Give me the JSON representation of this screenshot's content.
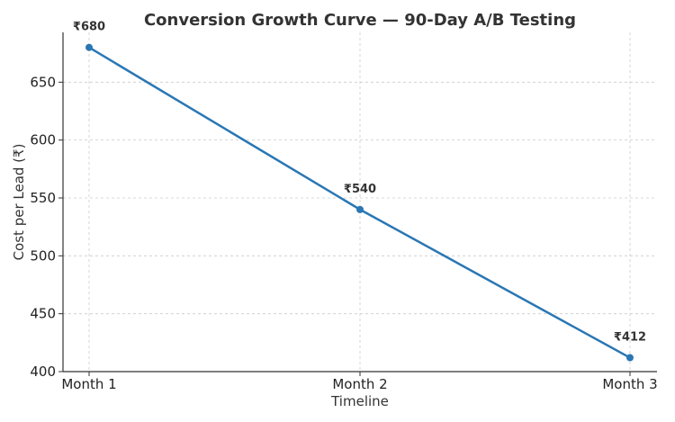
{
  "chart_data": {
    "type": "line",
    "title": "Conversion Growth Curve — 90-Day A/B Testing",
    "xlabel": "Timeline",
    "ylabel": "Cost per Lead (₹)",
    "categories": [
      "Month 1",
      "Month 2",
      "Month 3"
    ],
    "series": [
      {
        "values": [
          680,
          540,
          412
        ],
        "labels": [
          "₹680",
          "₹540",
          "₹412"
        ],
        "color": "#2a77b4"
      }
    ],
    "ylim": [
      400,
      693
    ],
    "yticks": [
      400,
      450,
      500,
      550,
      600,
      650
    ],
    "grid": true
  }
}
